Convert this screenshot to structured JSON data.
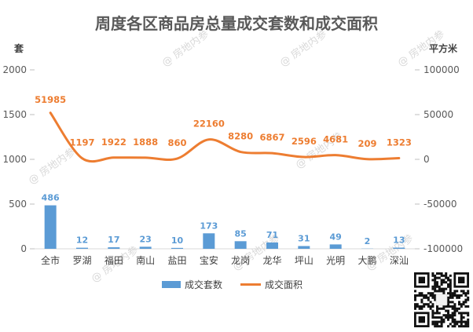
{
  "chart_data": {
    "type": "bar",
    "title": "周度各区商品房总量成交套数和成交面积",
    "categories": [
      "全市",
      "罗湖",
      "福田",
      "南山",
      "盐田",
      "宝安",
      "龙岗",
      "龙华",
      "坪山",
      "光明",
      "大鹏",
      "深汕"
    ],
    "series": [
      {
        "name": "成交套数",
        "type": "bar",
        "axis": "left",
        "color": "#5b9bd5",
        "values": [
          486,
          12,
          17,
          23,
          10,
          173,
          85,
          71,
          31,
          49,
          2,
          13
        ]
      },
      {
        "name": "成交面积",
        "type": "line",
        "axis": "right",
        "color": "#ed7d31",
        "values": [
          51985,
          1197,
          1922,
          1888,
          860,
          22160,
          8280,
          6867,
          2596,
          4681,
          209,
          1323
        ]
      }
    ],
    "y_left": {
      "label": "套",
      "ylim": [
        0,
        2000
      ],
      "ticks": [
        "0",
        "500",
        "1000",
        "1500",
        "2000"
      ]
    },
    "y_right": {
      "label": "平方米",
      "ylim": [
        -100000,
        100000
      ],
      "ticks": [
        "-100000",
        "-50000",
        "0",
        "50000",
        "100000"
      ]
    },
    "legend_position": "bottom",
    "grid": false
  },
  "watermark": {
    "text": "房地内参"
  }
}
